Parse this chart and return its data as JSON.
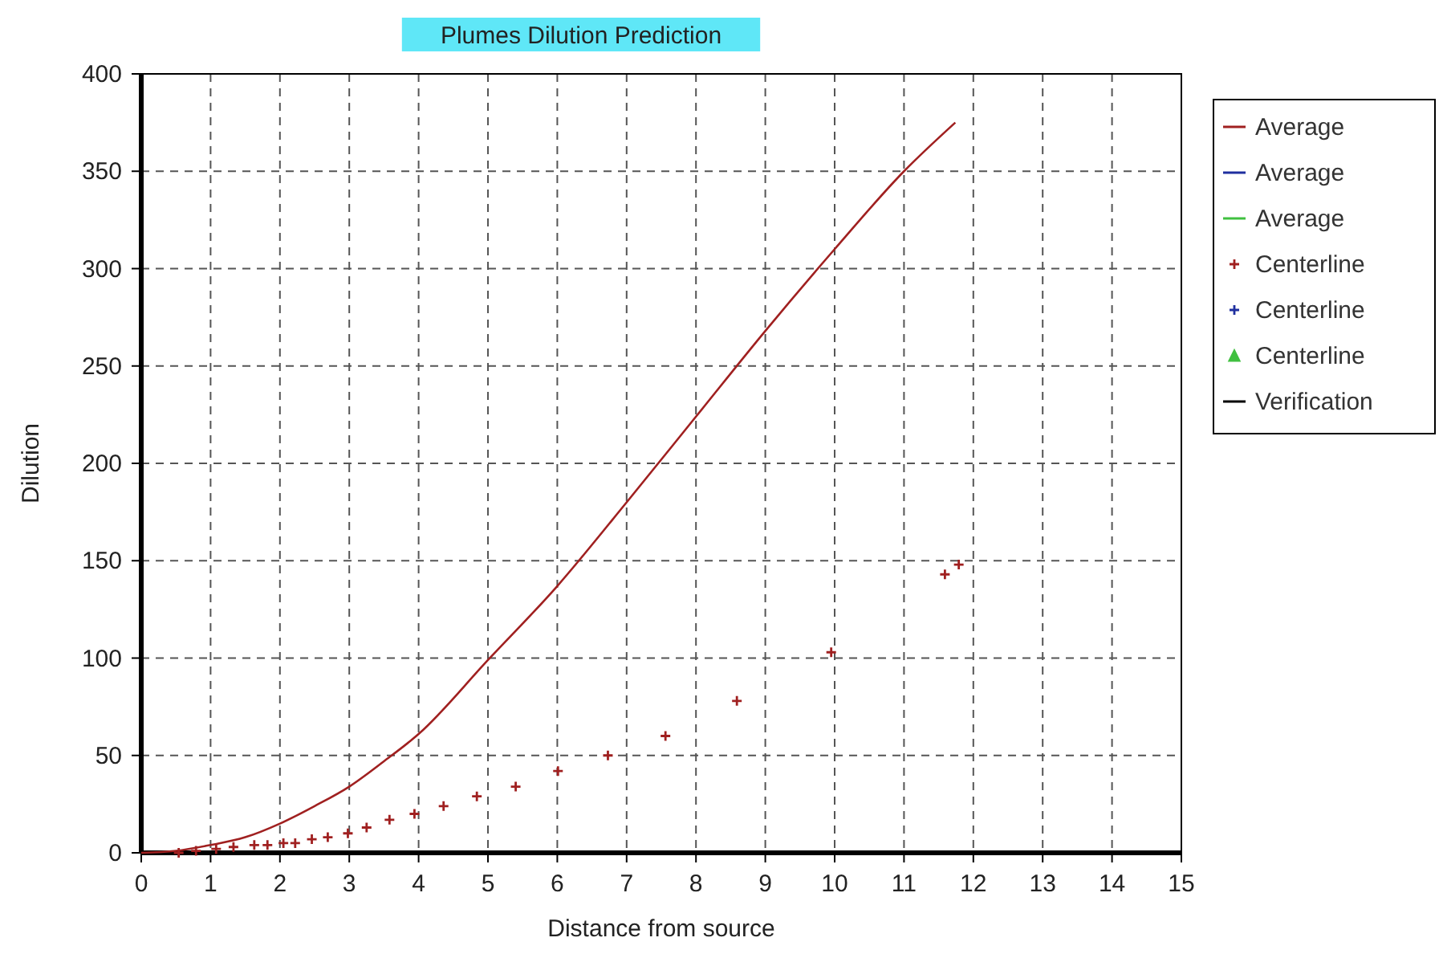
{
  "chart_data": {
    "type": "line",
    "title": "Plumes Dilution Prediction",
    "xlabel": "Distance from source",
    "ylabel": "Dilution",
    "xlim": [
      0,
      15
    ],
    "ylim": [
      0,
      400
    ],
    "xticks": [
      0,
      1,
      2,
      3,
      4,
      5,
      6,
      7,
      8,
      9,
      10,
      11,
      12,
      13,
      14,
      15
    ],
    "yticks": [
      0,
      50,
      100,
      150,
      200,
      250,
      300,
      350,
      400
    ],
    "grid": true,
    "legend": "right",
    "series": [
      {
        "name": "Average",
        "color": "#a02020",
        "line_style": "solid",
        "x": [
          0,
          0.5,
          1,
          1.5,
          2,
          2.5,
          3,
          3.5,
          4,
          5,
          6,
          7,
          8,
          9,
          10,
          11,
          11.74
        ],
        "values": [
          0,
          1,
          4,
          8,
          15,
          24,
          34,
          47,
          61,
          99,
          137,
          180,
          224,
          268,
          310,
          350,
          375
        ]
      },
      {
        "name": "Average",
        "color": "#1f2f9f",
        "line_style": "solid"
      },
      {
        "name": "Average",
        "color": "#40c040",
        "line_style": "solid"
      },
      {
        "name": "Centerline",
        "type": "scatter",
        "color": "#a02020",
        "marker": "cross",
        "x": [
          0.54,
          0.79,
          1.08,
          1.33,
          1.63,
          1.82,
          2.05,
          2.22,
          2.46,
          2.69,
          2.98,
          3.25,
          3.58,
          3.94,
          4.36,
          4.84,
          5.4,
          6.01,
          6.73,
          7.56,
          8.59,
          9.95,
          11.59,
          11.79
        ],
        "values": [
          0,
          1,
          2,
          3,
          4,
          4,
          5,
          5,
          7,
          8,
          10,
          13,
          17,
          20,
          24,
          29,
          34,
          42,
          50,
          60,
          78,
          103,
          143,
          148
        ]
      },
      {
        "name": "Centerline",
        "type": "scatter",
        "color": "#1f2f9f",
        "marker": "cross"
      },
      {
        "name": "Centerline",
        "type": "scatter",
        "color": "#40c040",
        "marker": "triangle"
      },
      {
        "name": "Verification",
        "color": "#000000",
        "line_style": "solid"
      }
    ]
  }
}
